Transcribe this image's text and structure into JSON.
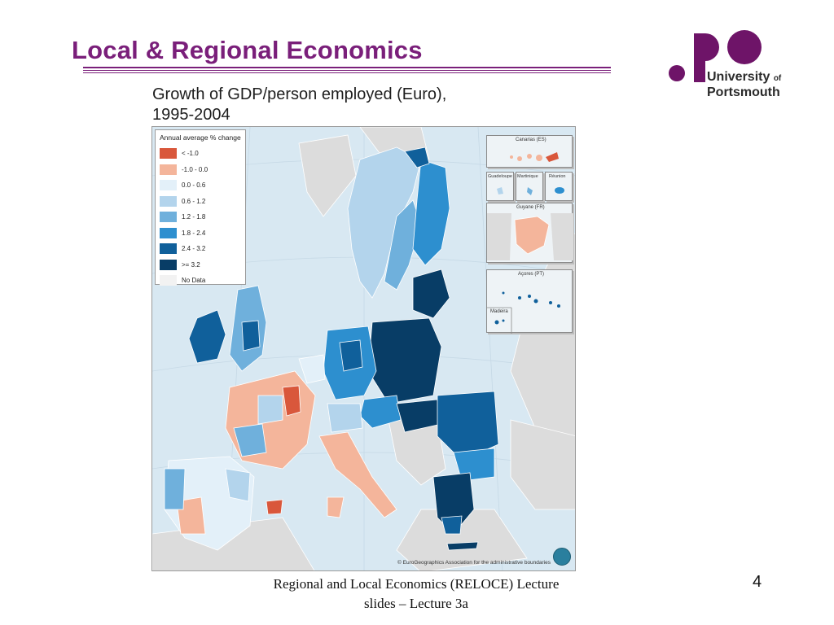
{
  "slide": {
    "title": "Local & Regional Economics",
    "footer_line1": "Regional and Local Economics (RELOCE) Lecture",
    "footer_line2": "slides – Lecture 3a",
    "page_number": "4"
  },
  "logo": {
    "line1": "University",
    "of": "of",
    "line2": "Portsmouth",
    "color": "#6e1468"
  },
  "map": {
    "title_line1": "Growth of GDP/person employed (Euro),",
    "title_line2": "1995-2004",
    "legend_title": "Annual average % change",
    "legend": [
      {
        "label": "< -1.0",
        "color": "#d9573b"
      },
      {
        "label": "-1.0 - 0.0",
        "color": "#f4b59b"
      },
      {
        "label": "0.0 - 0.6",
        "color": "#e3f0f9"
      },
      {
        "label": "0.6 - 1.2",
        "color": "#b3d4ec"
      },
      {
        "label": "1.2 - 1.8",
        "color": "#6fb0dc"
      },
      {
        "label": "1.8 - 2.4",
        "color": "#2d8fcf"
      },
      {
        "label": "2.4 - 3.2",
        "color": "#10609b"
      },
      {
        "label": ">= 3.2",
        "color": "#083d66"
      },
      {
        "label": "No Data",
        "color": "#f2f2f2"
      }
    ],
    "insets": {
      "canarias": "Canarias (ES)",
      "guadeloupe": "Guadeloupe",
      "martinique": "Martinique",
      "reunion": "Réunion",
      "guyane": "Guyane (FR)",
      "acores": "Açores (PT)",
      "madeira": "Madeira"
    },
    "copyright": "© EuroGeographics Association for the administrative boundaries",
    "colors": {
      "sea": "#d8e8f2",
      "non_eu_land": "#dcdcdc",
      "border": "#ffffff"
    }
  }
}
